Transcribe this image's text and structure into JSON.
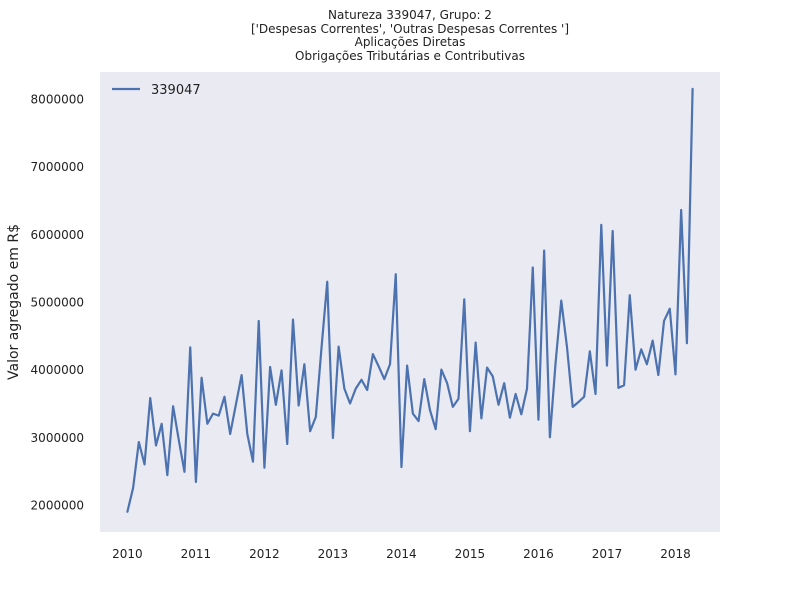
{
  "chart_data": {
    "type": "line",
    "title_lines": [
      "Natureza 339047, Grupo: 2",
      "['Despesas Correntes', 'Outras Despesas Correntes ']",
      "Aplicações Diretas",
      "Obrigações Tributárias e Contributivas"
    ],
    "xlabel": "",
    "ylabel": "Valor agregado em R$",
    "xlim": [
      2009.6,
      2018.65
    ],
    "ylim": [
      1600000,
      8400000
    ],
    "x_ticks": [
      2010,
      2011,
      2012,
      2013,
      2014,
      2015,
      2016,
      2017,
      2018
    ],
    "y_ticks": [
      2000000,
      3000000,
      4000000,
      5000000,
      6000000,
      7000000,
      8000000
    ],
    "y_tick_labels": [
      "2000000",
      "3000000",
      "4000000",
      "5000000",
      "6000000",
      "7000000",
      "8000000"
    ],
    "x_tick_labels": [
      "2010",
      "2011",
      "2012",
      "2013",
      "2014",
      "2015",
      "2016",
      "2017",
      "2018"
    ],
    "grid": false,
    "legend": "upper-left",
    "background": "#eaeaf2",
    "series": [
      {
        "name": "339047",
        "color": "#4c72b0",
        "x": [
          2010.0,
          2010.083,
          2010.167,
          2010.25,
          2010.333,
          2010.417,
          2010.5,
          2010.583,
          2010.667,
          2010.75,
          2010.833,
          2010.917,
          2011.0,
          2011.083,
          2011.167,
          2011.25,
          2011.333,
          2011.417,
          2011.5,
          2011.583,
          2011.667,
          2011.75,
          2011.833,
          2011.917,
          2012.0,
          2012.083,
          2012.167,
          2012.25,
          2012.333,
          2012.417,
          2012.5,
          2012.583,
          2012.667,
          2012.75,
          2012.833,
          2012.917,
          2013.0,
          2013.083,
          2013.167,
          2013.25,
          2013.333,
          2013.417,
          2013.5,
          2013.583,
          2013.667,
          2013.75,
          2013.833,
          2013.917,
          2014.0,
          2014.083,
          2014.167,
          2014.25,
          2014.333,
          2014.417,
          2014.5,
          2014.583,
          2014.667,
          2014.75,
          2014.833,
          2014.917,
          2015.0,
          2015.083,
          2015.167,
          2015.25,
          2015.333,
          2015.417,
          2015.5,
          2015.583,
          2015.667,
          2015.75,
          2015.833,
          2015.917,
          2016.0,
          2016.083,
          2016.167,
          2016.25,
          2016.333,
          2016.417,
          2016.5,
          2016.583,
          2016.667,
          2016.75,
          2016.833,
          2016.917,
          2017.0,
          2017.083,
          2017.167,
          2017.25,
          2017.333,
          2017.417,
          2017.5,
          2017.583,
          2017.667,
          2017.75,
          2017.833,
          2017.917,
          2018.0,
          2018.083,
          2018.167,
          2018.25
        ],
        "y": [
          1900000,
          2250000,
          2930000,
          2600000,
          3580000,
          2880000,
          3200000,
          2440000,
          3460000,
          2960000,
          2490000,
          4330000,
          2340000,
          3880000,
          3200000,
          3350000,
          3320000,
          3600000,
          3050000,
          3480000,
          3920000,
          3050000,
          2640000,
          4720000,
          2550000,
          4040000,
          3480000,
          3990000,
          2900000,
          4740000,
          3470000,
          4080000,
          3090000,
          3300000,
          4320000,
          5300000,
          2990000,
          4340000,
          3720000,
          3500000,
          3720000,
          3850000,
          3700000,
          4230000,
          4050000,
          3860000,
          4080000,
          5410000,
          2560000,
          4060000,
          3350000,
          3240000,
          3860000,
          3400000,
          3120000,
          4000000,
          3800000,
          3450000,
          3570000,
          5040000,
          3090000,
          4400000,
          3280000,
          4030000,
          3900000,
          3480000,
          3800000,
          3290000,
          3640000,
          3340000,
          3720000,
          5510000,
          3260000,
          5760000,
          3000000,
          4100000,
          5020000,
          4330000,
          3450000,
          3520000,
          3600000,
          4270000,
          3640000,
          6140000,
          4060000,
          6050000,
          3730000,
          3770000,
          5100000,
          4000000,
          4300000,
          4080000,
          4430000,
          3920000,
          4720000,
          4900000,
          3930000,
          6360000,
          4390000,
          8150000
        ]
      }
    ]
  }
}
